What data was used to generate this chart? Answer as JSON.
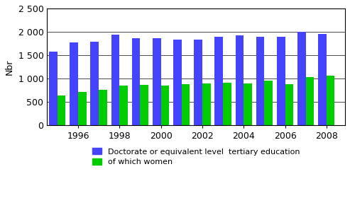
{
  "years": [
    1995,
    1996,
    1997,
    1998,
    1999,
    2000,
    2001,
    2002,
    2003,
    2004,
    2005,
    2006,
    2007,
    2008
  ],
  "doctorate": [
    1580,
    1780,
    1790,
    1940,
    1870,
    1860,
    1840,
    1830,
    1900,
    1920,
    1900,
    1890,
    2000,
    1950
  ],
  "women": [
    635,
    710,
    755,
    845,
    865,
    855,
    880,
    890,
    910,
    890,
    960,
    885,
    1030,
    1055
  ],
  "blue_color": "#4444ff",
  "green_color": "#00cc00",
  "ylabel": "Nbr",
  "ylim": [
    0,
    2500
  ],
  "yticks": [
    0,
    500,
    1000,
    1500,
    2000,
    2500
  ],
  "xtick_labels": [
    "1996",
    "1998",
    "2000",
    "2002",
    "2004",
    "2006",
    "2008"
  ],
  "xtick_positions": [
    1996,
    1998,
    2000,
    2002,
    2004,
    2006,
    2008
  ],
  "legend_doctorate": "Doctorate or equivalent level  tertiary education",
  "legend_women": "of which women",
  "bar_width": 0.4,
  "figsize": [
    4.93,
    3.04
  ],
  "dpi": 100
}
